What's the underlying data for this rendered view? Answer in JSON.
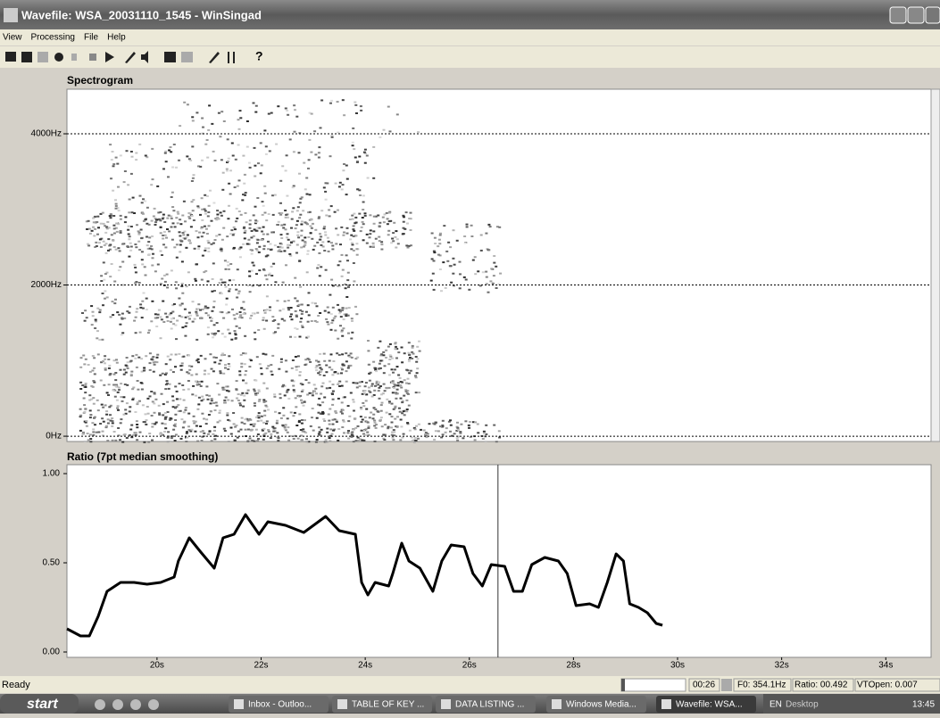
{
  "window": {
    "title": "Wavefile: WSA_20031110_1545 - WinSingad"
  },
  "menu": [
    "View",
    "Processing",
    "File",
    "Help"
  ],
  "chart_data": [
    {
      "type": "spectrogram",
      "title": "Spectrogram",
      "ylim": [
        -70,
        4590
      ],
      "yticks": [
        {
          "value": 0,
          "label": "0Hz"
        },
        {
          "value": 2000,
          "label": "2000Hz"
        },
        {
          "value": 4000,
          "label": "4000Hz"
        }
      ],
      "grid": true
    },
    {
      "type": "line",
      "title": "Ratio (7pt median smoothing)",
      "color": "#000000",
      "x": [
        18.27,
        18.53,
        18.7,
        18.87,
        19.04,
        19.3,
        19.56,
        19.81,
        20.07,
        20.33,
        20.41,
        20.62,
        20.84,
        21.1,
        21.27,
        21.48,
        21.7,
        21.96,
        22.13,
        22.47,
        22.82,
        23.24,
        23.5,
        23.81,
        23.93,
        24.05,
        24.19,
        24.45,
        24.53,
        24.7,
        24.84,
        25.05,
        25.3,
        25.47,
        25.65,
        25.9,
        26.07,
        26.25,
        26.42,
        26.68,
        26.85,
        27.02,
        27.2,
        27.45,
        27.71,
        27.88,
        28.05,
        28.31,
        28.48,
        28.65,
        28.82,
        28.96,
        29.08,
        29.25,
        29.42,
        29.59,
        29.71
      ],
      "values": [
        0.13,
        0.09,
        0.09,
        0.2,
        0.34,
        0.39,
        0.39,
        0.38,
        0.39,
        0.42,
        0.51,
        0.64,
        0.56,
        0.47,
        0.64,
        0.66,
        0.77,
        0.66,
        0.73,
        0.71,
        0.67,
        0.76,
        0.68,
        0.66,
        0.39,
        0.32,
        0.39,
        0.37,
        0.44,
        0.61,
        0.51,
        0.47,
        0.34,
        0.51,
        0.6,
        0.59,
        0.44,
        0.37,
        0.49,
        0.48,
        0.34,
        0.34,
        0.49,
        0.53,
        0.51,
        0.44,
        0.26,
        0.27,
        0.25,
        0.39,
        0.55,
        0.51,
        0.27,
        0.25,
        0.22,
        0.16,
        0.15
      ],
      "xlim": [
        18.27,
        34.87
      ],
      "ylim": [
        -0.03,
        1.05
      ],
      "xticks": [
        {
          "value": 20,
          "label": "20s"
        },
        {
          "value": 22,
          "label": "22s"
        },
        {
          "value": 24,
          "label": "24s"
        },
        {
          "value": 26,
          "label": "26s"
        },
        {
          "value": 28,
          "label": "28s"
        },
        {
          "value": 30,
          "label": "30s"
        },
        {
          "value": 32,
          "label": "32s"
        },
        {
          "value": 34,
          "label": "34s"
        }
      ],
      "yticks": [
        {
          "value": 0,
          "label": "0.00"
        },
        {
          "value": 0.5,
          "label": "0.50"
        },
        {
          "value": 1,
          "label": "1.00"
        }
      ],
      "cursor": 26.55
    }
  ],
  "status": {
    "text": "Ready",
    "time": "00:26",
    "f0": "F0: 354.1Hz",
    "ratio": "Ratio: 00.492",
    "vtopen": "VTOpen: 0.007"
  },
  "taskbar": {
    "start": "start",
    "tasks": [
      "Inbox - Outloo...",
      "TABLE OF KEY ...",
      "DATA LISTING ...",
      "Windows Media...",
      "Wavefile: WSA..."
    ],
    "lang": "EN",
    "desktop": "Desktop",
    "clock": "13:45"
  }
}
